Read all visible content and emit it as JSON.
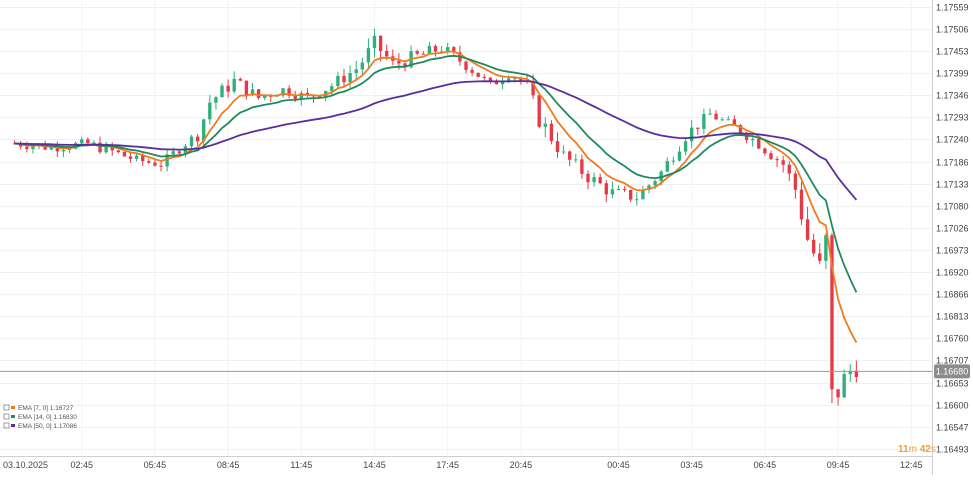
{
  "chart_data": {
    "type": "candlestick",
    "title": "",
    "grid": true,
    "y_ticks": [
      "1.17559",
      "1.17506",
      "1.17453",
      "1.17399",
      "1.17346",
      "1.17293",
      "1.17240",
      "1.17186",
      "1.17133",
      "1.17080",
      "1.17026",
      "1.16973",
      "1.16920",
      "1.16866",
      "1.16813",
      "1.16760",
      "1.16707",
      "1.16653",
      "1.16600",
      "1.16547",
      "1.16493"
    ],
    "y_range": [
      1.16476,
      1.17576
    ],
    "x_ticks": [
      "03.10.2025",
      "02:45",
      "05:45",
      "08:45",
      "11:45",
      "14:45",
      "17:45",
      "20:45",
      "00:45",
      "03:45",
      "06:45",
      "09:45",
      "12:45"
    ],
    "x_tick_times": [
      -0.5,
      2.75,
      5.75,
      8.75,
      11.75,
      14.75,
      17.75,
      20.75,
      24.75,
      27.75,
      30.75,
      33.75,
      36.75
    ],
    "x_range": [
      -0.6,
      37.6
    ],
    "current_price": "1.16680",
    "countdown": {
      "minutes": "11",
      "m_unit": "m",
      "seconds": "42",
      "s_unit": "s"
    },
    "legend": [
      {
        "label": "EMA [7, 0]  1.16727",
        "color": "#f07b1f"
      },
      {
        "label": "EMA [14, 0]  1.16830",
        "color": "#1f8a5e"
      },
      {
        "label": "EMA [50, 0]  1.17086",
        "color": "#5a2d9c"
      }
    ],
    "colors": {
      "up": "#2db07a",
      "down": "#e63946",
      "ema7": "#f07b1f",
      "ema14": "#1f8a5e",
      "ema50": "#5a2d9c",
      "price_tag": "#8c8c8c",
      "countdown": "#f0a030"
    },
    "candle_interval_hours": 0.25,
    "anchors": [
      [
        0.0,
        1.1723,
        0.02
      ],
      [
        1.5,
        1.1722,
        0.02
      ],
      [
        3.0,
        1.1723,
        0.02
      ],
      [
        4.0,
        1.1721,
        0.025
      ],
      [
        5.0,
        1.1719,
        0.02
      ],
      [
        6.0,
        1.1718,
        0.02
      ],
      [
        7.0,
        1.1723,
        0.02
      ],
      [
        7.5,
        1.1725,
        0.025
      ],
      [
        8.0,
        1.1733,
        0.03
      ],
      [
        9.0,
        1.1738,
        0.03
      ],
      [
        10.0,
        1.1734,
        0.025
      ],
      [
        11.0,
        1.1736,
        0.02
      ],
      [
        12.0,
        1.1734,
        0.025
      ],
      [
        13.0,
        1.1737,
        0.025
      ],
      [
        14.0,
        1.1741,
        0.03
      ],
      [
        14.8,
        1.1747,
        0.04
      ],
      [
        15.5,
        1.1742,
        0.03
      ],
      [
        16.5,
        1.1744,
        0.03
      ],
      [
        17.5,
        1.1746,
        0.025
      ],
      [
        18.5,
        1.1742,
        0.025
      ],
      [
        19.5,
        1.1737,
        0.02
      ],
      [
        20.3,
        1.174,
        0.02
      ],
      [
        21.0,
        1.1737,
        0.02
      ],
      [
        21.5,
        1.1729,
        0.04
      ],
      [
        22.5,
        1.172,
        0.03
      ],
      [
        23.5,
        1.1715,
        0.03
      ],
      [
        24.5,
        1.1711,
        0.03
      ],
      [
        25.5,
        1.171,
        0.025
      ],
      [
        26.5,
        1.1716,
        0.025
      ],
      [
        27.5,
        1.1725,
        0.03
      ],
      [
        28.5,
        1.173,
        0.02
      ],
      [
        29.5,
        1.1727,
        0.02
      ],
      [
        30.5,
        1.1723,
        0.025
      ],
      [
        31.5,
        1.1718,
        0.03
      ],
      [
        32.0,
        1.1712,
        0.04
      ],
      [
        32.5,
        1.17,
        0.05
      ],
      [
        33.0,
        1.1693,
        0.05
      ],
      [
        33.2,
        1.1707,
        0.05
      ],
      [
        33.5,
        1.166,
        0.12
      ],
      [
        33.8,
        1.1664,
        0.05
      ],
      [
        34.2,
        1.1668,
        0.05
      ],
      [
        34.7,
        1.167,
        0.04
      ]
    ]
  }
}
